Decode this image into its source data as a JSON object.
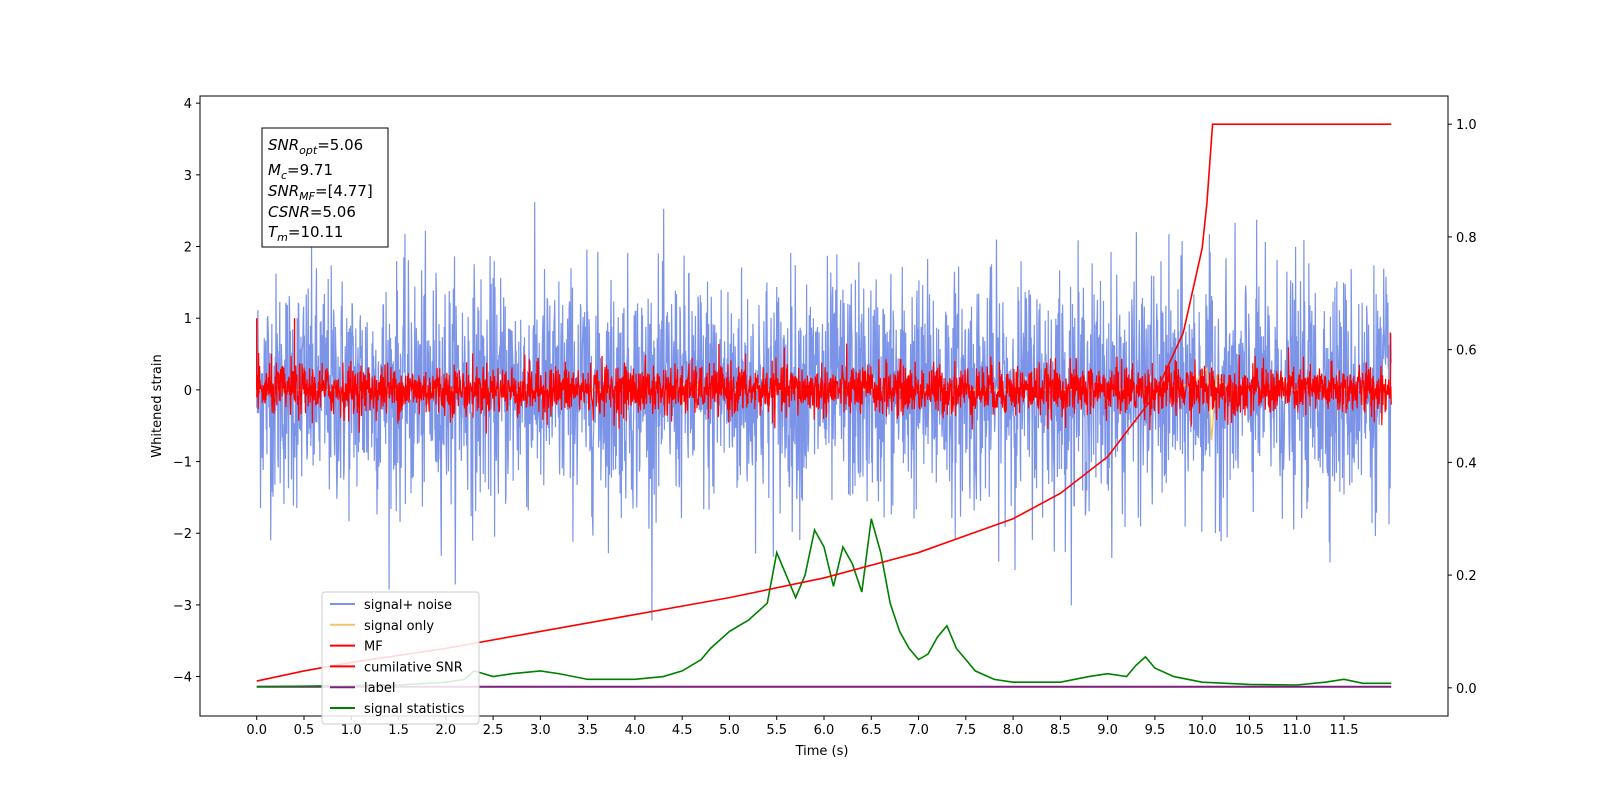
{
  "chart_data": {
    "type": "line",
    "xlabel": "Time (s)",
    "ylabel": "Whitened strain",
    "xlim": [
      -0.6,
      12.6
    ],
    "ylim": [
      -4.55,
      4.1
    ],
    "y2lim": [
      -0.05,
      1.05
    ],
    "x_ticks": [
      0.0,
      0.5,
      1.0,
      1.5,
      2.0,
      2.5,
      3.0,
      3.5,
      4.0,
      4.5,
      5.0,
      5.5,
      6.0,
      6.5,
      7.0,
      7.5,
      8.0,
      8.5,
      9.0,
      9.5,
      10.0,
      10.5,
      11.0,
      11.5
    ],
    "x_tick_labels": [
      "0.0",
      "0.5",
      "1.0",
      "1.5",
      "2.0",
      "2.5",
      "3.0",
      "3.5",
      "4.0",
      "4.5",
      "5.0",
      "5.5",
      "6.0",
      "6.5",
      "7.0",
      "7.5",
      "8.0",
      "8.5",
      "9.0",
      "9.5",
      "10.0",
      "10.5",
      "11.0",
      "11.5"
    ],
    "y_ticks": [
      4,
      3,
      2,
      1,
      0,
      -1,
      -2,
      -3,
      -4
    ],
    "y_tick_labels": [
      "4",
      "3",
      "2",
      "1",
      "0",
      "−1",
      "−2",
      "−3",
      "−4"
    ],
    "y2_ticks": [
      1.0,
      0.8,
      0.6,
      0.4,
      0.2,
      0.0
    ],
    "y2_tick_labels": [
      "1.0",
      "0.8",
      "0.6",
      "0.4",
      "0.2",
      "0.0"
    ],
    "legend_position": "lower-left",
    "series": [
      {
        "name": "signal+ noise",
        "color": "#7b94e8",
        "axis": "left",
        "range": [
          0.0,
          12.0
        ],
        "mean": 0.0,
        "std": 0.8
      },
      {
        "name": "signal only",
        "color": "#f5c26b",
        "axis": "left",
        "x": [
          0.0,
          9.0,
          9.5,
          9.9,
          10.05,
          10.1,
          10.15,
          10.3,
          12.0
        ],
        "y": [
          0.0,
          0.0,
          0.02,
          0.08,
          0.3,
          -0.7,
          0.2,
          0.0,
          0.0
        ]
      },
      {
        "name": "MF",
        "color": "#ff0000",
        "axis": "left",
        "range": [
          0.0,
          12.0
        ],
        "mean": 0.0,
        "std": 0.18,
        "spikes": [
          [
            0.0,
            1.0
          ],
          [
            0.4,
            1.0
          ],
          [
            11.99,
            0.8
          ]
        ]
      },
      {
        "name": "cumilative SNR",
        "color": "#ff0000",
        "axis": "right",
        "x": [
          0.0,
          0.5,
          1.0,
          2.0,
          3.0,
          4.0,
          5.0,
          6.0,
          7.0,
          7.5,
          8.0,
          8.5,
          9.0,
          9.5,
          9.8,
          10.0,
          10.05,
          10.11,
          12.0
        ],
        "y": [
          0.012,
          0.03,
          0.045,
          0.07,
          0.1,
          0.13,
          0.16,
          0.195,
          0.24,
          0.27,
          0.3,
          0.345,
          0.41,
          0.52,
          0.63,
          0.78,
          0.86,
          1.0,
          1.0
        ]
      },
      {
        "name": "label",
        "color": "#7a1f7a",
        "axis": "right",
        "x": [
          0.0,
          12.0
        ],
        "y": [
          0.002,
          0.002
        ]
      },
      {
        "name": "signal statistics",
        "color": "#008000",
        "axis": "right",
        "x": [
          0.0,
          0.5,
          1.0,
          1.5,
          2.0,
          2.2,
          2.3,
          2.5,
          2.7,
          3.0,
          3.2,
          3.5,
          4.0,
          4.3,
          4.5,
          4.7,
          4.8,
          5.0,
          5.2,
          5.4,
          5.5,
          5.6,
          5.7,
          5.8,
          5.9,
          6.0,
          6.1,
          6.2,
          6.3,
          6.4,
          6.5,
          6.6,
          6.7,
          6.8,
          6.9,
          7.0,
          7.1,
          7.2,
          7.3,
          7.4,
          7.5,
          7.6,
          7.8,
          8.0,
          8.5,
          8.8,
          9.0,
          9.2,
          9.3,
          9.4,
          9.5,
          9.7,
          10.0,
          10.5,
          11.0,
          11.3,
          11.5,
          11.7,
          12.0
        ],
        "y": [
          0.002,
          0.003,
          0.004,
          0.005,
          0.01,
          0.015,
          0.03,
          0.02,
          0.025,
          0.03,
          0.025,
          0.015,
          0.015,
          0.02,
          0.03,
          0.05,
          0.07,
          0.1,
          0.12,
          0.15,
          0.24,
          0.2,
          0.16,
          0.2,
          0.28,
          0.25,
          0.18,
          0.25,
          0.22,
          0.17,
          0.3,
          0.24,
          0.15,
          0.1,
          0.07,
          0.05,
          0.06,
          0.09,
          0.11,
          0.07,
          0.05,
          0.03,
          0.015,
          0.01,
          0.01,
          0.02,
          0.025,
          0.02,
          0.04,
          0.055,
          0.035,
          0.02,
          0.01,
          0.006,
          0.005,
          0.01,
          0.015,
          0.008,
          0.008
        ]
      }
    ],
    "info_box": {
      "snr_opt": {
        "symbol": "SNR",
        "sub": "opt",
        "value": "=5.06"
      },
      "mc": {
        "symbol": "M",
        "sub": "c",
        "value": "=9.71"
      },
      "snr_mf": {
        "symbol": "SNR",
        "sub": "MF",
        "value": "=[4.77]"
      },
      "csnr": {
        "symbol": "CSNR",
        "value": "=5.06"
      },
      "tm": {
        "symbol": "T",
        "sub": "m",
        "value": "=10.11"
      }
    }
  }
}
